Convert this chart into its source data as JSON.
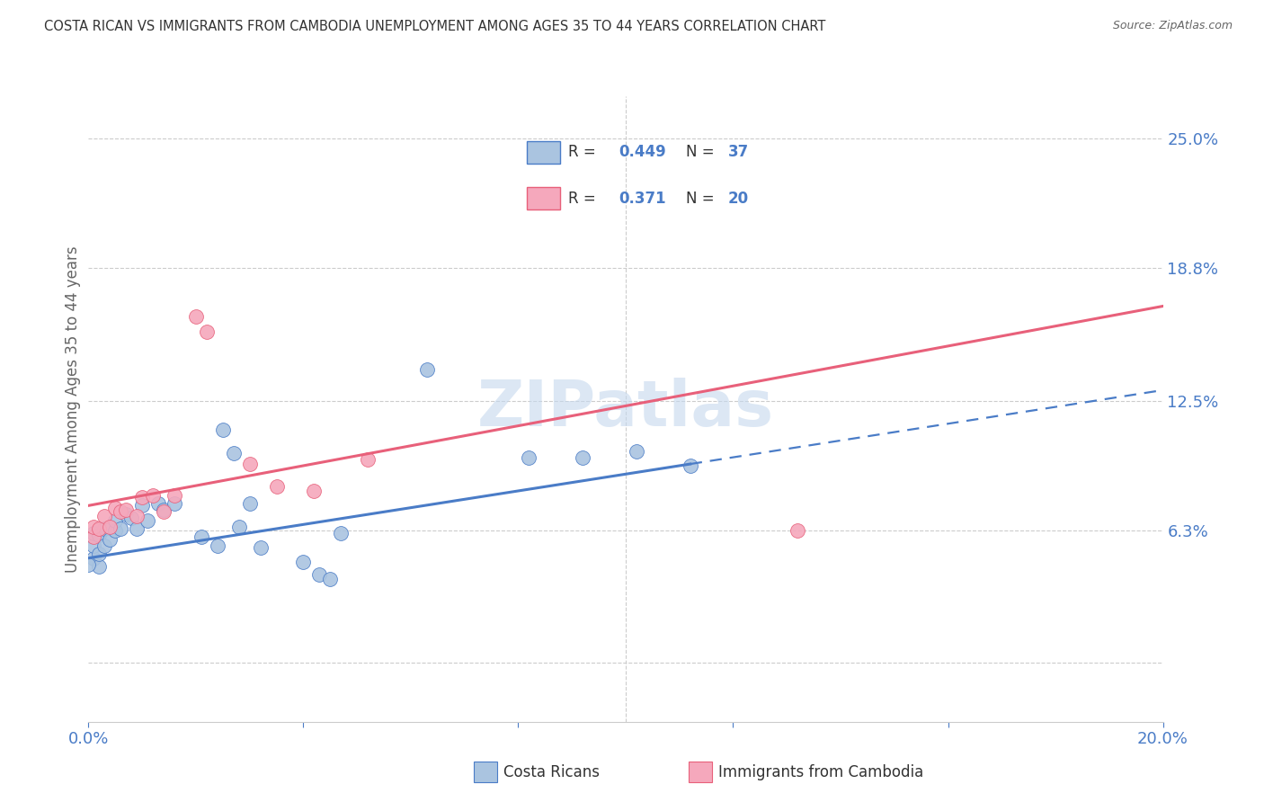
{
  "title": "COSTA RICAN VS IMMIGRANTS FROM CAMBODIA UNEMPLOYMENT AMONG AGES 35 TO 44 YEARS CORRELATION CHART",
  "source": "Source: ZipAtlas.com",
  "ylabel": "Unemployment Among Ages 35 to 44 years",
  "xlabel_cr": "Costa Ricans",
  "xlabel_camb": "Immigrants from Cambodia",
  "xmin": 0.0,
  "xmax": 0.2,
  "yticks": [
    0.0,
    0.063,
    0.125,
    0.188,
    0.25
  ],
  "ytick_labels": [
    "",
    "6.3%",
    "12.5%",
    "18.8%",
    "25.0%"
  ],
  "r_cr": 0.449,
  "n_cr": 37,
  "r_camb": 0.371,
  "n_camb": 20,
  "color_cr": "#aac4e0",
  "color_camb": "#f5a8bc",
  "line_color_cr": "#4a7cc7",
  "line_color_camb": "#e8607a",
  "watermark_text": "ZIPatlas",
  "watermark_color": "#c5d8ee",
  "background_color": "#ffffff",
  "grid_color": "#cccccc",
  "cr_x": [
    0.001,
    0.001,
    0.001,
    0.002,
    0.002,
    0.002,
    0.003,
    0.003,
    0.004,
    0.005,
    0.005,
    0.006,
    0.007,
    0.008,
    0.009,
    0.01,
    0.011,
    0.013,
    0.014,
    0.016,
    0.021,
    0.024,
    0.025,
    0.027,
    0.028,
    0.03,
    0.032,
    0.04,
    0.043,
    0.045,
    0.047,
    0.063,
    0.082,
    0.092,
    0.102,
    0.112,
    0.0
  ],
  "cr_y": [
    0.05,
    0.056,
    0.062,
    0.046,
    0.052,
    0.061,
    0.056,
    0.064,
    0.059,
    0.063,
    0.068,
    0.064,
    0.071,
    0.069,
    0.064,
    0.075,
    0.068,
    0.076,
    0.073,
    0.076,
    0.06,
    0.056,
    0.111,
    0.1,
    0.065,
    0.076,
    0.055,
    0.048,
    0.042,
    0.04,
    0.062,
    0.14,
    0.098,
    0.098,
    0.101,
    0.094,
    0.047
  ],
  "camb_x": [
    0.001,
    0.001,
    0.002,
    0.003,
    0.004,
    0.005,
    0.006,
    0.007,
    0.009,
    0.01,
    0.012,
    0.014,
    0.016,
    0.02,
    0.022,
    0.03,
    0.035,
    0.042,
    0.052,
    0.132
  ],
  "camb_y": [
    0.06,
    0.065,
    0.064,
    0.07,
    0.065,
    0.074,
    0.072,
    0.073,
    0.07,
    0.079,
    0.08,
    0.072,
    0.08,
    0.165,
    0.158,
    0.095,
    0.084,
    0.082,
    0.097,
    0.063
  ],
  "line_cr_x0": 0.0,
  "line_cr_x1": 0.2,
  "line_cr_y0": 0.05,
  "line_cr_y1": 0.13,
  "line_camb_x0": 0.0,
  "line_camb_x1": 0.2,
  "line_camb_y0": 0.075,
  "line_camb_y1": 0.17
}
